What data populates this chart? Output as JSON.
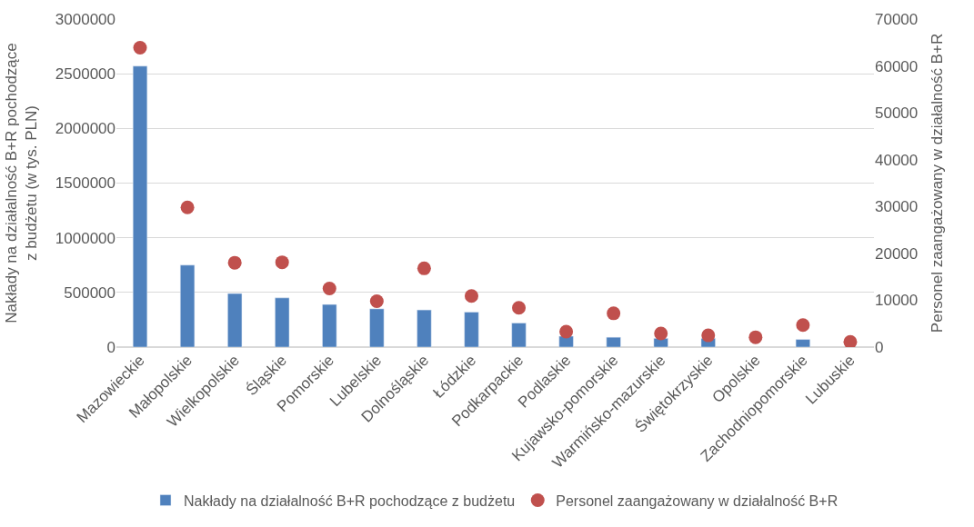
{
  "chart_data": {
    "type": "bar",
    "ylabel": "Nakłady na działalność B+R pochodzące z budżetu (w tys. PLN)",
    "y2label": "Personel zaangażowany w działalność B+R",
    "categories": [
      "Mazowieckie",
      "Małopolskie",
      "Wielkopolskie",
      "Śląskie",
      "Pomorskie",
      "Lubelskie",
      "Dolnośląskie",
      "Łódzkie",
      "Podkarpackie",
      "Podlaskie",
      "Kujawsko-pomorskie",
      "Warmińsko-mazurskie",
      "Świętokrzyskie",
      "Opolskie",
      "Zachodniopomorskie",
      "Lubuskie"
    ],
    "series": [
      {
        "name": "Nakłady na działalność B+R pochodzące z budżetu",
        "color": "#4f81bd",
        "values": [
          2570000,
          750000,
          490000,
          450000,
          390000,
          350000,
          340000,
          320000,
          220000,
          100000,
          90000,
          80000,
          80000,
          null,
          70000,
          null
        ]
      },
      {
        "name": "Personel zaangażowany w działalność B+R",
        "type": "scatter",
        "axis": "y2",
        "color": "#c0504d",
        "values": [
          63900,
          29800,
          18000,
          18100,
          12500,
          9800,
          16800,
          10900,
          8400,
          3300,
          7200,
          2900,
          2500,
          2100,
          4700,
          1100
        ]
      }
    ],
    "ylim": [
      0,
      3000000
    ],
    "yticks": [
      0,
      500000,
      1000000,
      1500000,
      2000000,
      2500000,
      3000000
    ],
    "y2lim": [
      0,
      70000
    ],
    "y2ticks": [
      0,
      10000,
      20000,
      30000,
      40000,
      50000,
      60000,
      70000
    ],
    "grid": "y",
    "legend": "bottom",
    "marker": "circle"
  }
}
